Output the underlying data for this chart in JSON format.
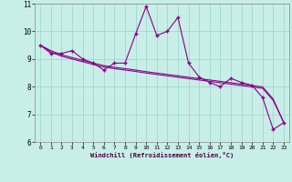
{
  "xlabel": "Windchill (Refroidissement éolien,°C)",
  "ylabel": "",
  "background_color": "#c8eee8",
  "grid_color": "#a0d8cc",
  "line_color": "#880088",
  "x": [
    0,
    1,
    2,
    3,
    4,
    5,
    6,
    7,
    8,
    9,
    10,
    11,
    12,
    13,
    14,
    15,
    16,
    17,
    18,
    19,
    20,
    21,
    22,
    23
  ],
  "y_main": [
    9.5,
    9.2,
    9.2,
    9.3,
    9.0,
    8.85,
    8.6,
    8.85,
    8.85,
    9.9,
    10.9,
    9.85,
    10.0,
    10.5,
    8.85,
    8.35,
    8.15,
    8.0,
    8.3,
    8.15,
    8.05,
    7.6,
    6.45,
    6.7
  ],
  "y_trend1": [
    9.5,
    9.3,
    9.15,
    9.05,
    8.95,
    8.85,
    8.76,
    8.7,
    8.65,
    8.6,
    8.54,
    8.49,
    8.44,
    8.39,
    8.34,
    8.29,
    8.24,
    8.19,
    8.14,
    8.09,
    8.04,
    7.99,
    7.55,
    6.7
  ],
  "y_trend2": [
    9.5,
    9.25,
    9.1,
    9.0,
    8.9,
    8.8,
    8.71,
    8.65,
    8.6,
    8.55,
    8.49,
    8.44,
    8.39,
    8.34,
    8.29,
    8.24,
    8.19,
    8.14,
    8.09,
    8.04,
    7.99,
    7.94,
    7.5,
    6.7
  ],
  "ylim": [
    6,
    11
  ],
  "xlim": [
    -0.5,
    23.5
  ],
  "yticks": [
    6,
    7,
    8,
    9,
    10,
    11
  ],
  "xticks": [
    0,
    1,
    2,
    3,
    4,
    5,
    6,
    7,
    8,
    9,
    10,
    11,
    12,
    13,
    14,
    15,
    16,
    17,
    18,
    19,
    20,
    21,
    22,
    23
  ]
}
